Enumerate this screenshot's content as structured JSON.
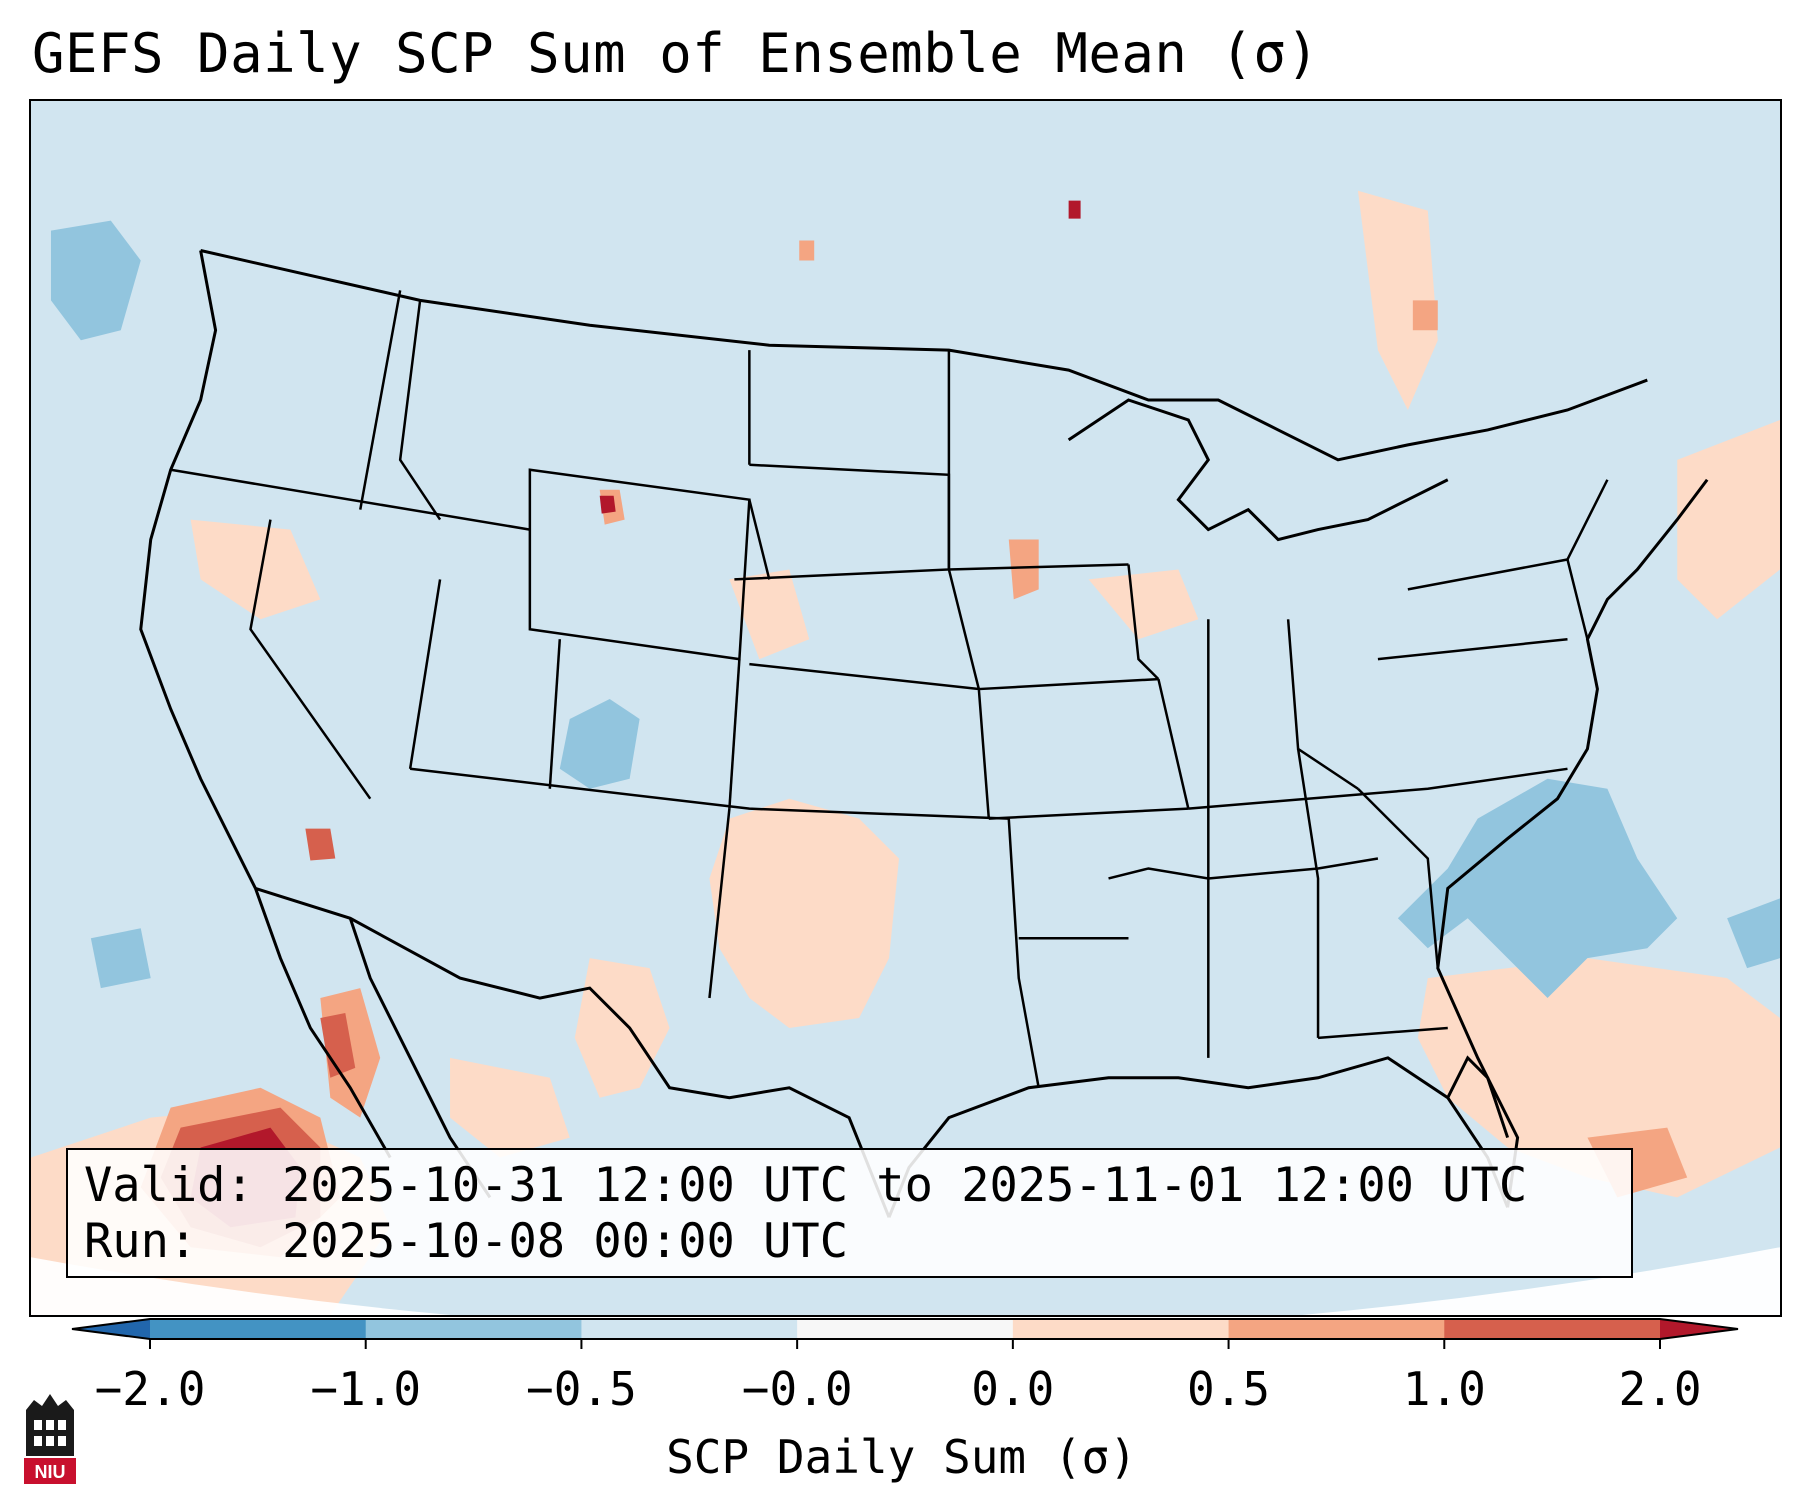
{
  "title": "GEFS Daily SCP Sum of Ensemble Mean (σ)",
  "info_box": {
    "valid_label": "Valid:",
    "valid_value": "2025-10-31 12:00 UTC to 2025-11-01 12:00 UTC",
    "run_label": "Run:",
    "run_value": "2025-10-08 00:00 UTC"
  },
  "colorbar": {
    "label": "SCP Daily Sum (σ)",
    "ticks": [
      "−2.0",
      "−1.0",
      "−0.5",
      "−0.0",
      "0.0",
      "0.5",
      "1.0",
      "2.0"
    ],
    "colors": [
      "#4393c3",
      "#92c5de",
      "#d1e5f0",
      "#f7f7f7",
      "#fddbc7",
      "#f4a582",
      "#d6604d"
    ],
    "under_color": "#2166ac",
    "over_color": "#b2182b"
  },
  "map": {
    "region": "Continental United States",
    "background_color": "#d1e5f0",
    "coast_color": "#000000"
  },
  "logo": {
    "text": "NIU",
    "color": "#c8102e"
  }
}
